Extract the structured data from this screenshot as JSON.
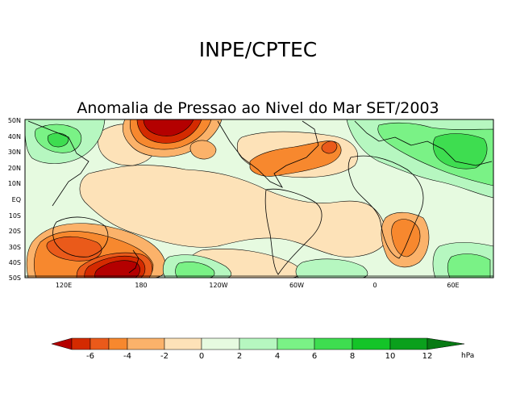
{
  "header": {
    "title": "INPE/CPTEC",
    "subtitle": "Anomalia de Pressao ao Nivel do Mar SET/2003"
  },
  "map": {
    "lat_labels": [
      "50N",
      "40N",
      "30N",
      "20N",
      "10N",
      "EQ",
      "10S",
      "20S",
      "30S",
      "40S",
      "50S"
    ],
    "lon_labels": [
      "120E",
      "180",
      "120W",
      "60W",
      "0",
      "60E"
    ]
  },
  "colorbar": {
    "tick_labels": [
      "-6",
      "-4",
      "-2",
      "0",
      "2",
      "4",
      "6",
      "8",
      "10",
      "12"
    ],
    "unit": "hPa",
    "colors": {
      "lt_-6": "#b40000",
      "-6_-5": "#d42a00",
      "-5_-4": "#ea5a1a",
      "-4_-3": "#f7882e",
      "-3_-2": "#fbb26a",
      "-2_0": "#fde2b8",
      "0_2": "#e6fae0",
      "2_4": "#b6f7c0",
      "4_6": "#7af286",
      "6_8": "#3edd50",
      "8_10": "#14c428",
      "10_12": "#0aa01c",
      "gt_12": "#087a14"
    }
  }
}
